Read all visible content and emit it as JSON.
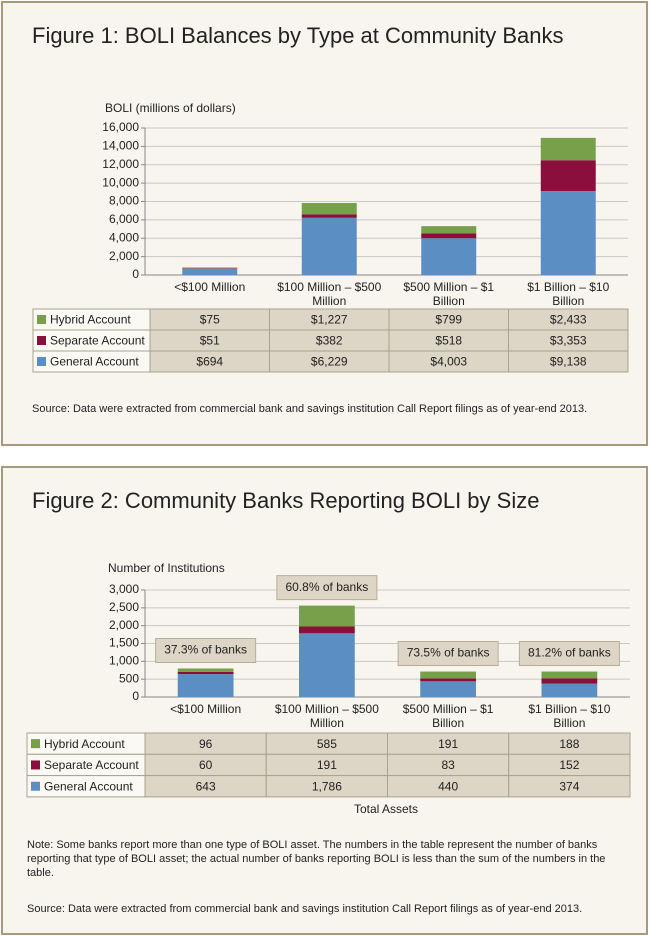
{
  "chart_data": [
    {
      "type": "bar",
      "stacked": true,
      "title": "Figure 1: BOLI Balances by Type at Community Banks",
      "y_label": "BOLI (millions of dollars)",
      "categories": [
        "<$100 Million",
        "$100 Million – $500 Million",
        "$500 Million – $1 Billion",
        "$1 Billion – $10 Billion"
      ],
      "series": [
        {
          "name": "Hybrid Account",
          "color": "#77a04a",
          "values": [
            75,
            1227,
            799,
            2433
          ],
          "value_labels": [
            "$75",
            "$1,227",
            "$799",
            "$2,433"
          ]
        },
        {
          "name": "Separate Account",
          "color": "#8b0f3c",
          "values": [
            51,
            382,
            518,
            3353
          ],
          "value_labels": [
            "$51",
            "$382",
            "$518",
            "$3,353"
          ]
        },
        {
          "name": "General Account",
          "color": "#5b8fc4",
          "values": [
            694,
            6229,
            4003,
            9138
          ],
          "value_labels": [
            "$694",
            "$6,229",
            "$4,003",
            "$9,138"
          ]
        }
      ],
      "ylim": [
        0,
        16000
      ],
      "yticks": [
        0,
        {
          "value": 2000,
          "label": "2,000"
        },
        {
          "value": 4000,
          "label": "4,000"
        },
        {
          "value": 6000,
          "label": "6,000"
        },
        {
          "value": 8000,
          "label": "8,000"
        },
        {
          "value": 10000,
          "label": "10,000"
        },
        {
          "value": 12000,
          "label": "12,000"
        },
        {
          "value": 14000,
          "label": "14,000"
        },
        {
          "value": 16000,
          "label": "16,000"
        }
      ],
      "grid": true,
      "source": "Source: Data were extracted from commercial bank and savings institution Call Report filings as of year-end 2013."
    },
    {
      "type": "bar",
      "stacked": true,
      "title": "Figure 2: Community Banks Reporting BOLI by Size",
      "y_label": "Number of Institutions",
      "x_label": "Total Assets",
      "categories": [
        "<$100 Million",
        "$100 Million – $500 Million",
        "$500 Million – $1 Billion",
        "$1 Billion – $10 Billion"
      ],
      "annotations": [
        "37.3% of banks",
        "60.8% of banks",
        "73.5% of banks",
        "81.2% of banks"
      ],
      "series": [
        {
          "name": "Hybrid Account",
          "color": "#77a04a",
          "values": [
            96,
            585,
            191,
            188
          ]
        },
        {
          "name": "Separate Account",
          "color": "#8b0f3c",
          "values": [
            60,
            191,
            83,
            152
          ]
        },
        {
          "name": "General Account",
          "color": "#5b8fc4",
          "values": [
            643,
            1786,
            440,
            374
          ],
          "value_labels": [
            "643",
            "1,786",
            "440",
            "374"
          ]
        }
      ],
      "ylim": [
        0,
        3000
      ],
      "yticks": [
        0,
        500,
        {
          "value": 1000,
          "label": "1,000"
        },
        {
          "value": 1500,
          "label": "1,500"
        },
        {
          "value": 2000,
          "label": "2,000"
        },
        {
          "value": 2500,
          "label": "2,500"
        },
        {
          "value": 3000,
          "label": "3,000"
        }
      ],
      "grid": true,
      "note": "Note: Some banks report more than one type of BOLI asset. The numbers in the table represent the number of banks reporting that type of BOLI asset; the actual number of banks reporting BOLI is less than the sum of the numbers in the table.",
      "source": "Source: Data were extracted from commercial bank and savings institution Call Report filings as of year-end 2013."
    }
  ]
}
